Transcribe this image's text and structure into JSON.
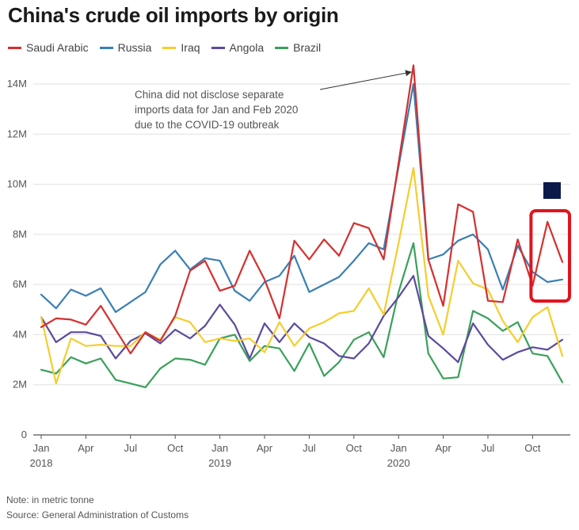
{
  "title": "China's crude oil imports by origin",
  "notes": {
    "note": "Note: in metric tonne",
    "source": "Source: General Administration of Customs"
  },
  "chart_data": {
    "type": "line",
    "ylim": [
      0,
      14500000
    ],
    "y_ticks": [
      0,
      2000000,
      4000000,
      6000000,
      8000000,
      10000000,
      12000000,
      14000000
    ],
    "y_tick_labels": [
      "0",
      "2M",
      "4M",
      "6M",
      "8M",
      "10M",
      "12M",
      "14M"
    ],
    "x": [
      "2018-01",
      "2018-02",
      "2018-03",
      "2018-04",
      "2018-05",
      "2018-06",
      "2018-07",
      "2018-08",
      "2018-09",
      "2018-10",
      "2018-11",
      "2018-12",
      "2019-01",
      "2019-02",
      "2019-03",
      "2019-04",
      "2019-05",
      "2019-06",
      "2019-07",
      "2019-08",
      "2019-09",
      "2019-10",
      "2019-11",
      "2019-12",
      "2020-01",
      "2020-02",
      "2020-03",
      "2020-04",
      "2020-05",
      "2020-06",
      "2020-07",
      "2020-08",
      "2020-09",
      "2020-10",
      "2020-11",
      "2020-12"
    ],
    "x_tick_labels": [
      {
        "month": "Jan",
        "year": "2018",
        "index": 0
      },
      {
        "month": "Apr",
        "year": "",
        "index": 3
      },
      {
        "month": "Jul",
        "year": "",
        "index": 6
      },
      {
        "month": "Oct",
        "year": "",
        "index": 9
      },
      {
        "month": "Jan",
        "year": "2019",
        "index": 12
      },
      {
        "month": "Apr",
        "year": "",
        "index": 15
      },
      {
        "month": "Jul",
        "year": "",
        "index": 18
      },
      {
        "month": "Oct",
        "year": "",
        "index": 21
      },
      {
        "month": "Jan",
        "year": "2020",
        "index": 24
      },
      {
        "month": "Apr",
        "year": "",
        "index": 27
      },
      {
        "month": "Jul",
        "year": "",
        "index": 30
      },
      {
        "month": "Oct",
        "year": "",
        "index": 33
      }
    ],
    "series": [
      {
        "name": "Saudi Arabic",
        "color": "#d62f2f",
        "values": [
          4300000,
          4650000,
          4600000,
          4400000,
          5150000,
          4200000,
          3250000,
          4100000,
          3750000,
          4750000,
          6550000,
          6950000,
          5750000,
          5950000,
          7350000,
          6200000,
          4650000,
          7750000,
          7000000,
          7800000,
          7150000,
          8450000,
          8250000,
          7000000,
          10850000,
          14750000,
          7000000,
          5150000,
          9200000,
          8900000,
          5350000,
          5300000,
          7800000,
          5950000,
          8500000,
          6900000
        ]
      },
      {
        "name": "Russia",
        "color": "#3a7fb5",
        "values": [
          5600000,
          5050000,
          5800000,
          5550000,
          5850000,
          4900000,
          5300000,
          5700000,
          6800000,
          7350000,
          6600000,
          7050000,
          6950000,
          5750000,
          5350000,
          6100000,
          6350000,
          7150000,
          5700000,
          6000000,
          6300000,
          6950000,
          7650000,
          7400000,
          10700000,
          14000000,
          7000000,
          7200000,
          7750000,
          8000000,
          7400000,
          5800000,
          7550000,
          6500000,
          6100000,
          6200000
        ]
      },
      {
        "name": "Iraq",
        "color": "#f5cd2e",
        "values": [
          4700000,
          2050000,
          3850000,
          3550000,
          3600000,
          3550000,
          3550000,
          4100000,
          3800000,
          4700000,
          4500000,
          3700000,
          3850000,
          3750000,
          3850000,
          3300000,
          4500000,
          3550000,
          4250000,
          4500000,
          4850000,
          4950000,
          5850000,
          4800000,
          7650000,
          10650000,
          5550000,
          4000000,
          6950000,
          6050000,
          5800000,
          4550000,
          3700000,
          4700000,
          5100000,
          3150000
        ]
      },
      {
        "name": "Angola",
        "color": "#5c4a9e",
        "values": [
          4700000,
          3700000,
          4100000,
          4100000,
          3950000,
          3050000,
          3750000,
          4050000,
          3650000,
          4200000,
          3850000,
          4350000,
          5200000,
          4400000,
          3050000,
          4450000,
          3700000,
          4450000,
          3900000,
          3650000,
          3150000,
          3050000,
          3650000,
          4750000,
          5500000,
          6350000,
          3950000,
          3450000,
          2900000,
          4450000,
          3600000,
          3000000,
          3300000,
          3500000,
          3400000,
          3800000
        ]
      },
      {
        "name": "Brazil",
        "color": "#3aa05a",
        "values": [
          2600000,
          2450000,
          3100000,
          2850000,
          3050000,
          2200000,
          2050000,
          1900000,
          2650000,
          3050000,
          3000000,
          2800000,
          3850000,
          4000000,
          2950000,
          3550000,
          3450000,
          2550000,
          3650000,
          2350000,
          2900000,
          3800000,
          4100000,
          3100000,
          5700000,
          7650000,
          3250000,
          2250000,
          2300000,
          4950000,
          4650000,
          4150000,
          4500000,
          3250000,
          3150000,
          2100000
        ]
      }
    ],
    "annotation": {
      "text_lines": [
        "China did not disclose separate",
        "imports data for Jan and Feb 2020",
        "due to the COVID-19 outbreak"
      ],
      "arrow_to_index": 25
    },
    "highlight_box": {
      "from_index": 33,
      "to_index": 35,
      "color": "#e0141e"
    },
    "grid": true,
    "legend_position": "top-left"
  }
}
